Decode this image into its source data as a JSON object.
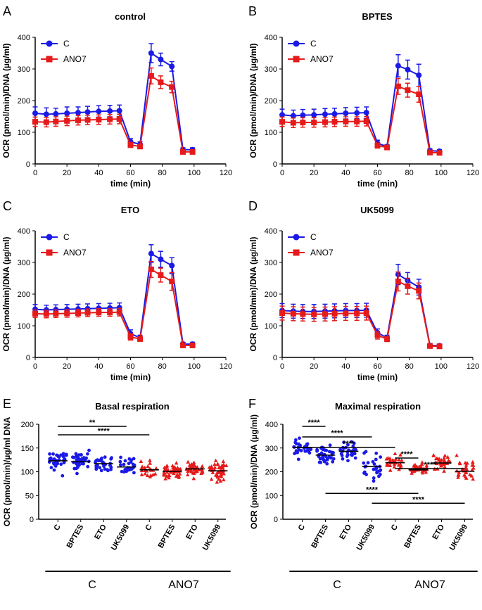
{
  "colors": {
    "C": "#1a1ae6",
    "ANO7": "#e61a1a"
  },
  "chart_data": [
    {
      "panel": "A",
      "type": "line",
      "title": "control",
      "xlabel": "time (min)",
      "ylabel": "OCR (pmol/min)/DNA (µg/ml)",
      "xlim": [
        0,
        120
      ],
      "ylim": [
        0,
        400
      ],
      "xticks": [
        "0",
        "20",
        "40",
        "60",
        "80",
        "100",
        "120"
      ],
      "yticks": [
        "0",
        "100",
        "200",
        "300",
        "400"
      ],
      "legend": [
        "C",
        "ANO7"
      ],
      "x": [
        0,
        7,
        13,
        20,
        27,
        33,
        40,
        47,
        53,
        60,
        66,
        73,
        79,
        86,
        93,
        99
      ],
      "series": [
        {
          "name": "C",
          "values": [
            160,
            157,
            158,
            160,
            162,
            164,
            166,
            167,
            168,
            70,
            62,
            350,
            330,
            308,
            45,
            45
          ],
          "err": [
            20,
            20,
            18,
            20,
            18,
            18,
            18,
            18,
            18,
            10,
            8,
            30,
            20,
            15,
            6,
            6
          ]
        },
        {
          "name": "ANO7",
          "values": [
            133,
            132,
            134,
            136,
            138,
            139,
            140,
            141,
            142,
            60,
            55,
            278,
            258,
            243,
            38,
            38
          ],
          "err": [
            15,
            15,
            15,
            15,
            15,
            15,
            15,
            15,
            15,
            8,
            6,
            25,
            20,
            18,
            5,
            5
          ]
        }
      ]
    },
    {
      "panel": "B",
      "type": "line",
      "title": "BPTES",
      "xlabel": "time (min)",
      "ylabel": "OCR (pmol/min)/DNA (µg/ml)",
      "xlim": [
        0,
        120
      ],
      "ylim": [
        0,
        400
      ],
      "xticks": [
        "0",
        "20",
        "40",
        "60",
        "80",
        "100",
        "120"
      ],
      "yticks": [
        "0",
        "100",
        "200",
        "300",
        "400"
      ],
      "legend": [
        "C",
        "ANO7"
      ],
      "x": [
        0,
        7,
        13,
        20,
        27,
        33,
        40,
        47,
        53,
        60,
        66,
        73,
        79,
        86,
        93,
        99
      ],
      "series": [
        {
          "name": "C",
          "values": [
            155,
            152,
            154,
            155,
            157,
            158,
            160,
            161,
            162,
            65,
            55,
            310,
            298,
            280,
            42,
            40
          ],
          "err": [
            18,
            18,
            18,
            18,
            18,
            18,
            18,
            18,
            18,
            10,
            6,
            35,
            30,
            35,
            6,
            5
          ]
        },
        {
          "name": "ANO7",
          "values": [
            133,
            130,
            131,
            131,
            132,
            133,
            134,
            134,
            135,
            58,
            52,
            245,
            233,
            220,
            36,
            35
          ],
          "err": [
            15,
            15,
            15,
            15,
            15,
            15,
            15,
            15,
            15,
            8,
            6,
            25,
            22,
            25,
            5,
            5
          ]
        }
      ]
    },
    {
      "panel": "C",
      "type": "line",
      "title": "ETO",
      "xlabel": "time (min)",
      "ylabel": "OCR (pmol/min)/DNA (µg/ml)",
      "xlim": [
        0,
        120
      ],
      "ylim": [
        0,
        400
      ],
      "xticks": [
        "0",
        "20",
        "40",
        "60",
        "80",
        "100",
        "120"
      ],
      "yticks": [
        "0",
        "100",
        "200",
        "300",
        "400"
      ],
      "legend": [
        "C",
        "ANO7"
      ],
      "x": [
        0,
        7,
        13,
        20,
        27,
        33,
        40,
        47,
        53,
        60,
        66,
        73,
        79,
        86,
        93,
        99
      ],
      "series": [
        {
          "name": "C",
          "values": [
            152,
            150,
            151,
            152,
            153,
            154,
            155,
            156,
            157,
            75,
            62,
            328,
            310,
            290,
            42,
            42
          ],
          "err": [
            15,
            15,
            15,
            15,
            15,
            15,
            15,
            15,
            15,
            12,
            8,
            28,
            25,
            25,
            6,
            6
          ]
        },
        {
          "name": "ANO7",
          "values": [
            138,
            137,
            138,
            139,
            140,
            141,
            142,
            142,
            143,
            65,
            58,
            278,
            260,
            240,
            38,
            38
          ],
          "err": [
            12,
            12,
            12,
            12,
            12,
            12,
            12,
            12,
            12,
            10,
            6,
            25,
            22,
            28,
            5,
            5
          ]
        }
      ]
    },
    {
      "panel": "D",
      "type": "line",
      "title": "UK5099",
      "xlabel": "time (min)",
      "ylabel": "OCR (pmol/min)/DNA (µg/ml)",
      "xlim": [
        0,
        120
      ],
      "ylim": [
        0,
        400
      ],
      "xticks": [
        "0",
        "20",
        "40",
        "60",
        "80",
        "100",
        "120"
      ],
      "yticks": [
        "0",
        "100",
        "200",
        "300",
        "400"
      ],
      "legend": [
        "C",
        "ANO7"
      ],
      "x": [
        0,
        7,
        13,
        20,
        27,
        33,
        40,
        47,
        53,
        60,
        66,
        73,
        79,
        86,
        93,
        99
      ],
      "series": [
        {
          "name": "C",
          "values": [
            148,
            146,
            145,
            145,
            146,
            147,
            148,
            148,
            149,
            78,
            62,
            262,
            243,
            222,
            38,
            37
          ],
          "err": [
            22,
            22,
            22,
            22,
            22,
            22,
            22,
            22,
            22,
            12,
            8,
            32,
            25,
            25,
            5,
            5
          ]
        },
        {
          "name": "ANO7",
          "values": [
            140,
            138,
            137,
            136,
            137,
            138,
            139,
            139,
            140,
            70,
            58,
            240,
            225,
            210,
            36,
            35
          ],
          "err": [
            22,
            22,
            22,
            22,
            22,
            22,
            22,
            22,
            22,
            12,
            8,
            30,
            25,
            25,
            5,
            5
          ]
        }
      ]
    },
    {
      "panel": "E",
      "type": "scatter",
      "title": "Basal respiration",
      "ylabel": "OCR (pmol/min)/µg/ml  DNA",
      "ylim": [
        0,
        200
      ],
      "yticks": [
        "0",
        "50",
        "100",
        "150",
        "200"
      ],
      "categories": [
        "C",
        "BPTES",
        "ETO",
        "UK5099",
        "C",
        "BPTES",
        "ETO",
        "UK5099"
      ],
      "category_groups": [
        "C",
        "C",
        "C",
        "C",
        "ANO7",
        "ANO7",
        "ANO7",
        "ANO7"
      ],
      "groups": [
        "C",
        "ANO7"
      ],
      "means": [
        123,
        121,
        117,
        110,
        104,
        101,
        106,
        102
      ],
      "n": [
        34,
        40,
        30,
        26,
        24,
        44,
        46,
        48
      ],
      "spread": [
        17,
        15,
        14,
        16,
        12,
        10,
        10,
        15
      ],
      "significance": [
        {
          "from": 0,
          "to": 3,
          "label": "**"
        },
        {
          "from": 0,
          "to": 4,
          "label": "****"
        }
      ]
    },
    {
      "panel": "F",
      "type": "scatter",
      "title": "Maximal respiration",
      "ylabel": "OCR (pmol/min)/DNA (µg/ml)",
      "ylim": [
        0,
        400
      ],
      "yticks": [
        "0",
        "100",
        "200",
        "300",
        "400"
      ],
      "categories": [
        "C",
        "BPTES",
        "ETO",
        "UK5099",
        "C",
        "BPTES",
        "ETO",
        "UK5099"
      ],
      "category_groups": [
        "C",
        "C",
        "C",
        "C",
        "ANO7",
        "ANO7",
        "ANO7",
        "ANO7"
      ],
      "groups": [
        "C",
        "ANO7"
      ],
      "means": [
        302,
        270,
        286,
        222,
        238,
        208,
        237,
        202
      ],
      "n": [
        34,
        40,
        30,
        30,
        28,
        40,
        36,
        32
      ],
      "spread": [
        27,
        28,
        30,
        38,
        25,
        18,
        25,
        35
      ],
      "significance": [
        {
          "from": 0,
          "to": 1,
          "label": "****",
          "pos": "top"
        },
        {
          "from": 0,
          "to": 3,
          "label": "****",
          "pos": "top"
        },
        {
          "from": 0,
          "to": 4,
          "label": "****",
          "pos": "top"
        },
        {
          "from": 4,
          "to": 5,
          "label": "****",
          "pos": "top"
        },
        {
          "from": 4,
          "to": 7,
          "label": "****",
          "pos": "top"
        },
        {
          "from": 1,
          "to": 5,
          "label": "****",
          "pos": "bottom"
        },
        {
          "from": 3,
          "to": 7,
          "label": "****",
          "pos": "bottom"
        }
      ]
    }
  ]
}
